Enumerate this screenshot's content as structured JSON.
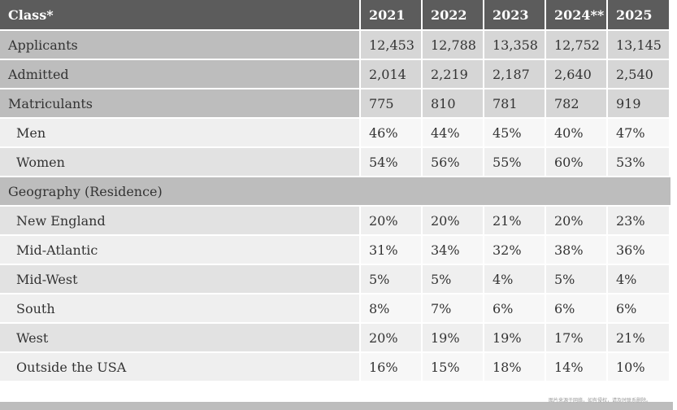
{
  "header": {
    "label": "Class*",
    "years": [
      "2021",
      "2022",
      "2023",
      "2024**",
      "2025"
    ]
  },
  "rows": [
    {
      "label": "Applicants",
      "values": [
        "12,453",
        "12,788",
        "13,358",
        "12,752",
        "13,145"
      ]
    },
    {
      "label": "Admitted",
      "values": [
        "2,014",
        "2,219",
        "2,187",
        "2,640",
        "2,540"
      ]
    },
    {
      "label": "Matriculants",
      "values": [
        "775",
        "810",
        "781",
        "782",
        "919"
      ]
    },
    {
      "label": "Men",
      "values": [
        "46%",
        "44%",
        "45%",
        "40%",
        "47%"
      ]
    },
    {
      "label": "Women",
      "values": [
        "54%",
        "56%",
        "55%",
        "60%",
        "53%"
      ]
    }
  ],
  "geography": {
    "section_label": "Geography (Residence)",
    "rows": [
      {
        "label": "New England",
        "values": [
          "20%",
          "20%",
          "21%",
          "20%",
          "23%"
        ]
      },
      {
        "label": "Mid-Atlantic",
        "values": [
          "31%",
          "34%",
          "32%",
          "38%",
          "36%"
        ]
      },
      {
        "label": "Mid-West",
        "values": [
          "5%",
          "5%",
          "4%",
          "5%",
          "4%"
        ]
      },
      {
        "label": "South",
        "values": [
          "8%",
          "7%",
          "6%",
          "6%",
          "6%"
        ]
      },
      {
        "label": "West",
        "values": [
          "20%",
          "19%",
          "19%",
          "17%",
          "21%"
        ]
      },
      {
        "label": "Outside the USA",
        "values": [
          "16%",
          "15%",
          "18%",
          "14%",
          "10%"
        ]
      }
    ]
  },
  "watermark": "图片来源于网络，如有侵权，请及时联系删除。"
}
